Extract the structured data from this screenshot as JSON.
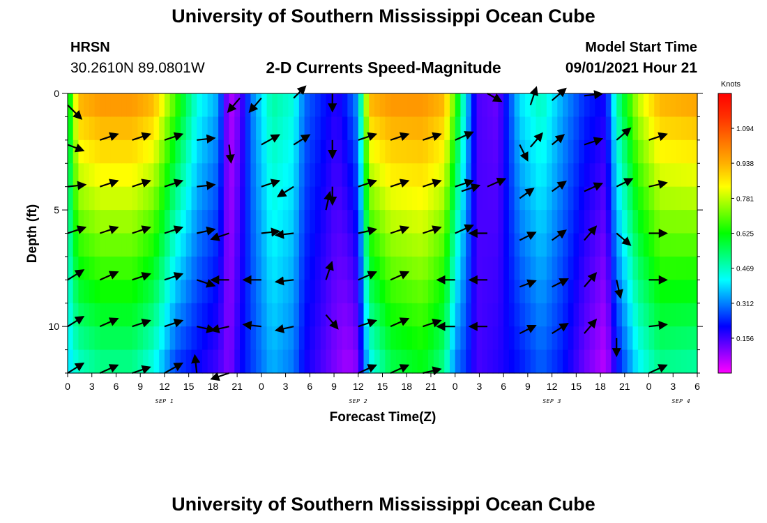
{
  "header": {
    "title": "University of Southern Mississippi Ocean Cube",
    "footer_title": "University of Southern Mississippi Ocean Cube",
    "station": "HRSN",
    "coords": "30.2610N  89.0801W",
    "plot_title": "2-D Currents Speed-Magnitude",
    "model_start_label": "Model Start Time",
    "model_start_value": "09/01/2021 Hour 21"
  },
  "chart_data": {
    "type": "heatmap",
    "title": "2-D Currents Speed-Magnitude",
    "xlabel": "Forecast Time(Z)",
    "ylabel": "Depth (ft)",
    "x_ticks": [
      "0",
      "3",
      "6",
      "9",
      "12",
      "15",
      "18",
      "21",
      "0",
      "3",
      "6",
      "9",
      "12",
      "15",
      "18",
      "21",
      "0",
      "3",
      "6",
      "9",
      "12",
      "15",
      "18",
      "21",
      "0",
      "3",
      "6"
    ],
    "date_labels": [
      {
        "label": "SEP 1",
        "x": 4.5
      },
      {
        "label": "SEP 2",
        "x": 13.5
      },
      {
        "label": "SEP 3",
        "x": 22.5
      },
      {
        "label": "SEP 4",
        "x": 28.5
      }
    ],
    "xlim": [
      0,
      29.25
    ],
    "y_ticks": [
      "0",
      "5",
      "10"
    ],
    "ylim": [
      0,
      12
    ],
    "colorbar": {
      "unit": "Knots",
      "ticks": [
        "1.094",
        "0.938",
        "0.781",
        "0.625",
        "0.469",
        "0.312",
        "0.156"
      ],
      "range": [
        0.0,
        1.25
      ],
      "colors": [
        "#ff00ff",
        "#8000ff",
        "#0000ff",
        "#0080ff",
        "#00ffff",
        "#00ff80",
        "#00ff00",
        "#80ff00",
        "#ffff00",
        "#ffb000",
        "#ff7000",
        "#ff3000",
        "#ff0000"
      ]
    },
    "speed_profile": [
      {
        "t": 0.0,
        "top": 0.55,
        "bot": 0.38
      },
      {
        "t": 0.5,
        "top": 0.95,
        "bot": 0.45
      },
      {
        "t": 1.5,
        "top": 1.0,
        "bot": 0.5
      },
      {
        "t": 3.0,
        "top": 1.0,
        "bot": 0.5
      },
      {
        "t": 4.0,
        "top": 0.95,
        "bot": 0.42
      },
      {
        "t": 5.0,
        "top": 0.7,
        "bot": 0.25
      },
      {
        "t": 6.0,
        "top": 0.45,
        "bot": 0.2
      },
      {
        "t": 7.0,
        "top": 0.35,
        "bot": 0.15
      },
      {
        "t": 7.5,
        "top": 0.05,
        "bot": 0.1
      },
      {
        "t": 8.0,
        "top": 0.12,
        "bot": 0.2
      },
      {
        "t": 8.5,
        "top": 0.3,
        "bot": 0.25
      },
      {
        "t": 9.5,
        "top": 0.5,
        "bot": 0.35
      },
      {
        "t": 10.5,
        "top": 0.45,
        "bot": 0.3
      },
      {
        "t": 11.0,
        "top": 0.3,
        "bot": 0.2
      },
      {
        "t": 12.5,
        "top": 0.18,
        "bot": 0.1
      },
      {
        "t": 13.0,
        "top": 0.25,
        "bot": 0.07
      },
      {
        "t": 13.5,
        "top": 0.35,
        "bot": 0.1
      },
      {
        "t": 14.0,
        "top": 0.95,
        "bot": 0.4
      },
      {
        "t": 15.0,
        "top": 1.0,
        "bot": 0.55
      },
      {
        "t": 16.5,
        "top": 1.0,
        "bot": 0.6
      },
      {
        "t": 17.5,
        "top": 0.95,
        "bot": 0.5
      },
      {
        "t": 18.0,
        "top": 0.7,
        "bot": 0.3
      },
      {
        "t": 18.5,
        "top": 0.4,
        "bot": 0.25
      },
      {
        "t": 19.0,
        "top": 0.15,
        "bot": 0.15
      },
      {
        "t": 20.0,
        "top": 0.12,
        "bot": 0.18
      },
      {
        "t": 21.0,
        "top": 0.4,
        "bot": 0.22
      },
      {
        "t": 22.0,
        "top": 0.48,
        "bot": 0.28
      },
      {
        "t": 23.0,
        "top": 0.35,
        "bot": 0.22
      },
      {
        "t": 24.0,
        "top": 0.25,
        "bot": 0.12
      },
      {
        "t": 25.0,
        "top": 0.2,
        "bot": 0.05
      },
      {
        "t": 25.5,
        "top": 0.5,
        "bot": 0.2
      },
      {
        "t": 26.5,
        "top": 0.8,
        "bot": 0.4
      },
      {
        "t": 27.5,
        "top": 0.95,
        "bot": 0.5
      },
      {
        "t": 29.25,
        "top": 0.98,
        "bot": 0.48
      }
    ],
    "vectors": [
      {
        "t": 0,
        "d": 0.5,
        "u": 0.7,
        "v": -0.7
      },
      {
        "t": 0,
        "d": 2.2,
        "u": 0.8,
        "v": -0.3
      },
      {
        "t": 0,
        "d": 4.0,
        "u": 0.9,
        "v": 0.1
      },
      {
        "t": 0,
        "d": 6.0,
        "u": 0.9,
        "v": 0.3
      },
      {
        "t": 0,
        "d": 8.0,
        "u": 0.8,
        "v": 0.5
      },
      {
        "t": 0,
        "d": 10.0,
        "u": 0.8,
        "v": 0.5
      },
      {
        "t": 0,
        "d": 12.0,
        "u": 0.8,
        "v": 0.5
      },
      {
        "t": 1.5,
        "d": 2.0,
        "u": 0.9,
        "v": 0.3
      },
      {
        "t": 1.5,
        "d": 4.0,
        "u": 0.9,
        "v": 0.3
      },
      {
        "t": 1.5,
        "d": 6.0,
        "u": 0.9,
        "v": 0.3
      },
      {
        "t": 1.5,
        "d": 8.0,
        "u": 0.9,
        "v": 0.4
      },
      {
        "t": 1.5,
        "d": 10.0,
        "u": 0.9,
        "v": 0.4
      },
      {
        "t": 1.5,
        "d": 12.0,
        "u": 0.9,
        "v": 0.4
      },
      {
        "t": 3,
        "d": 2.0,
        "u": 0.9,
        "v": 0.3
      },
      {
        "t": 3,
        "d": 4.0,
        "u": 0.9,
        "v": 0.3
      },
      {
        "t": 3,
        "d": 6.0,
        "u": 0.9,
        "v": 0.3
      },
      {
        "t": 3,
        "d": 8.0,
        "u": 0.9,
        "v": 0.3
      },
      {
        "t": 3,
        "d": 10.0,
        "u": 0.9,
        "v": 0.3
      },
      {
        "t": 3,
        "d": 12.0,
        "u": 0.9,
        "v": 0.3
      },
      {
        "t": 4.5,
        "d": 2.0,
        "u": 0.9,
        "v": 0.3
      },
      {
        "t": 4.5,
        "d": 4.0,
        "u": 0.9,
        "v": 0.3
      },
      {
        "t": 4.5,
        "d": 6.0,
        "u": 0.9,
        "v": 0.3
      },
      {
        "t": 4.5,
        "d": 8.0,
        "u": 0.9,
        "v": 0.3
      },
      {
        "t": 4.5,
        "d": 10.0,
        "u": 0.9,
        "v": 0.3
      },
      {
        "t": 4.5,
        "d": 12.0,
        "u": 0.9,
        "v": 0.5
      },
      {
        "t": 6,
        "d": 2.0,
        "u": 0.9,
        "v": 0.1
      },
      {
        "t": 6,
        "d": 4.0,
        "u": 0.9,
        "v": 0.1
      },
      {
        "t": 6,
        "d": 6.0,
        "u": 0.9,
        "v": 0.2
      },
      {
        "t": 6,
        "d": 8.0,
        "u": 0.9,
        "v": -0.3
      },
      {
        "t": 6,
        "d": 10.0,
        "u": 0.9,
        "v": -0.2
      },
      {
        "t": 6,
        "d": 12.0,
        "u": -0.1,
        "v": 0.9
      },
      {
        "t": 7.5,
        "d": 2.2,
        "u": 0.1,
        "v": -0.9
      },
      {
        "t": 7.5,
        "d": 6.0,
        "u": -0.9,
        "v": -0.3
      },
      {
        "t": 7.5,
        "d": 8.0,
        "u": -0.9,
        "v": 0.0
      },
      {
        "t": 7.5,
        "d": 10.0,
        "u": -0.9,
        "v": -0.2
      },
      {
        "t": 7.5,
        "d": 12.0,
        "u": -0.9,
        "v": -0.3
      },
      {
        "t": 8.0,
        "d": 0.2,
        "u": -0.6,
        "v": -0.7
      },
      {
        "t": 9,
        "d": 2.2,
        "u": 0.9,
        "v": 0.5
      },
      {
        "t": 9,
        "d": 4.0,
        "u": 0.9,
        "v": 0.3
      },
      {
        "t": 9,
        "d": 6.0,
        "u": 0.9,
        "v": 0.1
      },
      {
        "t": 9,
        "d": 8.0,
        "u": -0.9,
        "v": 0.0
      },
      {
        "t": 9,
        "d": 10.0,
        "u": -0.9,
        "v": 0.1
      },
      {
        "t": 9.0,
        "d": 0.2,
        "u": -0.6,
        "v": -0.7
      },
      {
        "t": 10.5,
        "d": 0.2,
        "u": 0.6,
        "v": 0.6
      },
      {
        "t": 10.5,
        "d": 2.2,
        "u": 0.8,
        "v": 0.5
      },
      {
        "t": 10.5,
        "d": 4.0,
        "u": -0.8,
        "v": -0.5
      },
      {
        "t": 10.5,
        "d": 6.0,
        "u": -0.9,
        "v": -0.1
      },
      {
        "t": 10.5,
        "d": 8.0,
        "u": -0.9,
        "v": -0.1
      },
      {
        "t": 10.5,
        "d": 10.0,
        "u": -0.9,
        "v": -0.2
      },
      {
        "t": 12.0,
        "d": 9.5,
        "u": 0.6,
        "v": -0.7
      },
      {
        "t": 12.0,
        "d": 8.0,
        "u": 0.3,
        "v": 0.9
      },
      {
        "t": 12.0,
        "d": 5.0,
        "u": 0.2,
        "v": 0.9
      },
      {
        "t": 12.3,
        "d": 0.0,
        "u": 0.0,
        "v": -0.9
      },
      {
        "t": 12.3,
        "d": 2.0,
        "u": 0.0,
        "v": -0.9
      },
      {
        "t": 12.3,
        "d": 4.0,
        "u": 0.0,
        "v": -0.9
      },
      {
        "t": 13.5,
        "d": 2.0,
        "u": 0.9,
        "v": 0.3
      },
      {
        "t": 13.5,
        "d": 4.0,
        "u": 0.9,
        "v": 0.3
      },
      {
        "t": 13.5,
        "d": 6.0,
        "u": 0.9,
        "v": 0.2
      },
      {
        "t": 13.5,
        "d": 8.0,
        "u": 0.9,
        "v": 0.4
      },
      {
        "t": 13.5,
        "d": 10.0,
        "u": 0.9,
        "v": 0.3
      },
      {
        "t": 13.5,
        "d": 12.0,
        "u": 0.9,
        "v": 0.4
      },
      {
        "t": 15,
        "d": 2.0,
        "u": 0.9,
        "v": 0.3
      },
      {
        "t": 15,
        "d": 4.0,
        "u": 0.9,
        "v": 0.3
      },
      {
        "t": 15,
        "d": 6.0,
        "u": 0.9,
        "v": 0.3
      },
      {
        "t": 15,
        "d": 8.0,
        "u": 0.9,
        "v": 0.4
      },
      {
        "t": 15,
        "d": 10.0,
        "u": 0.9,
        "v": 0.4
      },
      {
        "t": 15,
        "d": 12.0,
        "u": 0.9,
        "v": 0.4
      },
      {
        "t": 16.5,
        "d": 2.0,
        "u": 0.9,
        "v": 0.3
      },
      {
        "t": 16.5,
        "d": 4.0,
        "u": 0.9,
        "v": 0.3
      },
      {
        "t": 16.5,
        "d": 6.0,
        "u": 0.9,
        "v": 0.3
      },
      {
        "t": 16.5,
        "d": 10.0,
        "u": 0.9,
        "v": 0.3
      },
      {
        "t": 16.5,
        "d": 12.0,
        "u": 0.9,
        "v": 0.2
      },
      {
        "t": 18,
        "d": 2.0,
        "u": 0.9,
        "v": 0.4
      },
      {
        "t": 18,
        "d": 4.0,
        "u": 0.9,
        "v": 0.3
      },
      {
        "t": 18,
        "d": 6.0,
        "u": 0.9,
        "v": 0.4
      },
      {
        "t": 18,
        "d": 8.0,
        "u": -0.9,
        "v": 0.0
      },
      {
        "t": 18,
        "d": 10.0,
        "u": -0.9,
        "v": 0.0
      },
      {
        "t": 18.3,
        "d": 4.2,
        "u": 0.9,
        "v": 0.3
      },
      {
        "t": 19.5,
        "d": 4.0,
        "u": 0.9,
        "v": 0.4
      },
      {
        "t": 19.5,
        "d": 6.0,
        "u": -0.9,
        "v": 0.0
      },
      {
        "t": 19.5,
        "d": 8.0,
        "u": -0.9,
        "v": 0.0
      },
      {
        "t": 19.5,
        "d": 10.0,
        "u": -0.9,
        "v": 0.0
      },
      {
        "t": 19.5,
        "d": 0.0,
        "u": 0.7,
        "v": -0.4
      },
      {
        "t": 21,
        "d": 2.2,
        "u": 0.4,
        "v": -0.8
      },
      {
        "t": 21,
        "d": 4.5,
        "u": 0.7,
        "v": 0.5
      },
      {
        "t": 21,
        "d": 6.3,
        "u": 0.8,
        "v": 0.4
      },
      {
        "t": 21,
        "d": 8.3,
        "u": 0.8,
        "v": 0.3
      },
      {
        "t": 21,
        "d": 10.3,
        "u": 0.8,
        "v": 0.4
      },
      {
        "t": 21.5,
        "d": 0.5,
        "u": 0.3,
        "v": 0.9
      },
      {
        "t": 21.5,
        "d": 2.3,
        "u": 0.6,
        "v": 0.7
      },
      {
        "t": 22.5,
        "d": 2.2,
        "u": 0.6,
        "v": 0.5
      },
      {
        "t": 22.5,
        "d": 4.2,
        "u": 0.7,
        "v": 0.5
      },
      {
        "t": 22.5,
        "d": 6.3,
        "u": 0.7,
        "v": 0.5
      },
      {
        "t": 22.5,
        "d": 8.3,
        "u": 0.8,
        "v": 0.4
      },
      {
        "t": 22.5,
        "d": 10.3,
        "u": 0.8,
        "v": 0.5
      },
      {
        "t": 22.5,
        "d": 0.3,
        "u": 0.7,
        "v": 0.6
      },
      {
        "t": 24,
        "d": 2.2,
        "u": 0.9,
        "v": 0.3
      },
      {
        "t": 24,
        "d": 4.2,
        "u": 0.9,
        "v": 0.4
      },
      {
        "t": 24,
        "d": 6.3,
        "u": 0.6,
        "v": 0.7
      },
      {
        "t": 24,
        "d": 8.3,
        "u": 0.6,
        "v": 0.7
      },
      {
        "t": 24,
        "d": 10.3,
        "u": 0.6,
        "v": 0.7
      },
      {
        "t": 24,
        "d": 0.1,
        "u": 0.9,
        "v": 0.1
      },
      {
        "t": 25.5,
        "d": 2.0,
        "u": 0.7,
        "v": 0.6
      },
      {
        "t": 25.5,
        "d": 4.0,
        "u": 0.8,
        "v": 0.4
      },
      {
        "t": 25.5,
        "d": 6.0,
        "u": 0.7,
        "v": -0.6
      },
      {
        "t": 25.5,
        "d": 8.0,
        "u": 0.2,
        "v": -0.9
      },
      {
        "t": 25.5,
        "d": 10.5,
        "u": 0.0,
        "v": -0.9
      },
      {
        "t": 27,
        "d": 2.0,
        "u": 0.9,
        "v": 0.3
      },
      {
        "t": 27,
        "d": 4.0,
        "u": 0.9,
        "v": 0.2
      },
      {
        "t": 27,
        "d": 6.0,
        "u": 0.9,
        "v": 0.0
      },
      {
        "t": 27,
        "d": 8.0,
        "u": 0.9,
        "v": 0.0
      },
      {
        "t": 27,
        "d": 10.0,
        "u": 0.9,
        "v": 0.1
      },
      {
        "t": 27,
        "d": 12.0,
        "u": 0.9,
        "v": 0.4
      }
    ]
  }
}
